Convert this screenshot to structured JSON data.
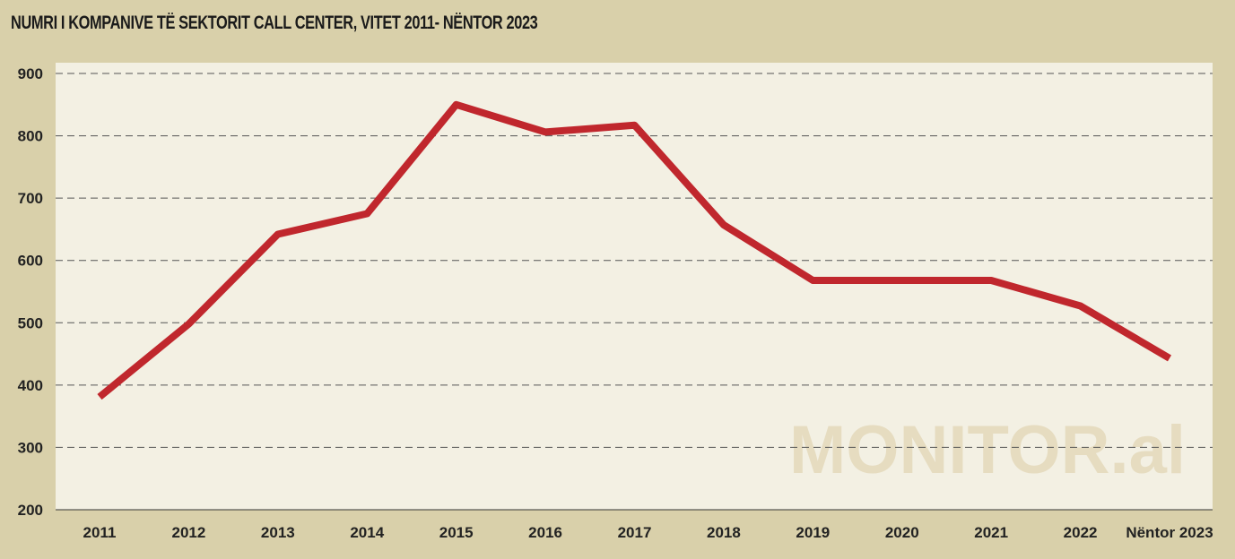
{
  "chart_data": {
    "type": "line",
    "title": "NUMRI I KOMPANIVE TË SEKTORIT CALL CENTER, VITET 2011- NËNTOR 2023",
    "categories": [
      "2011",
      "2012",
      "2013",
      "2014",
      "2015",
      "2016",
      "2017",
      "2018",
      "2019",
      "2020",
      "2021",
      "2022",
      "Nëntor 2023"
    ],
    "series": [
      {
        "values": [
          381,
          498,
          642,
          675,
          850,
          806,
          817,
          657,
          568,
          568,
          568,
          527,
          443
        ],
        "color": "#c0272d"
      }
    ],
    "xlabel": "",
    "ylabel": "",
    "ylim": [
      200,
      900
    ],
    "yticks": [
      200,
      300,
      400,
      500,
      600,
      700,
      800,
      900
    ],
    "grid": "horizontal dashed",
    "watermark": "MONITOR.al",
    "colors": {
      "background": "#d9d0aa",
      "plot_background": "#f3f0e3",
      "line": "#c0272d"
    }
  }
}
